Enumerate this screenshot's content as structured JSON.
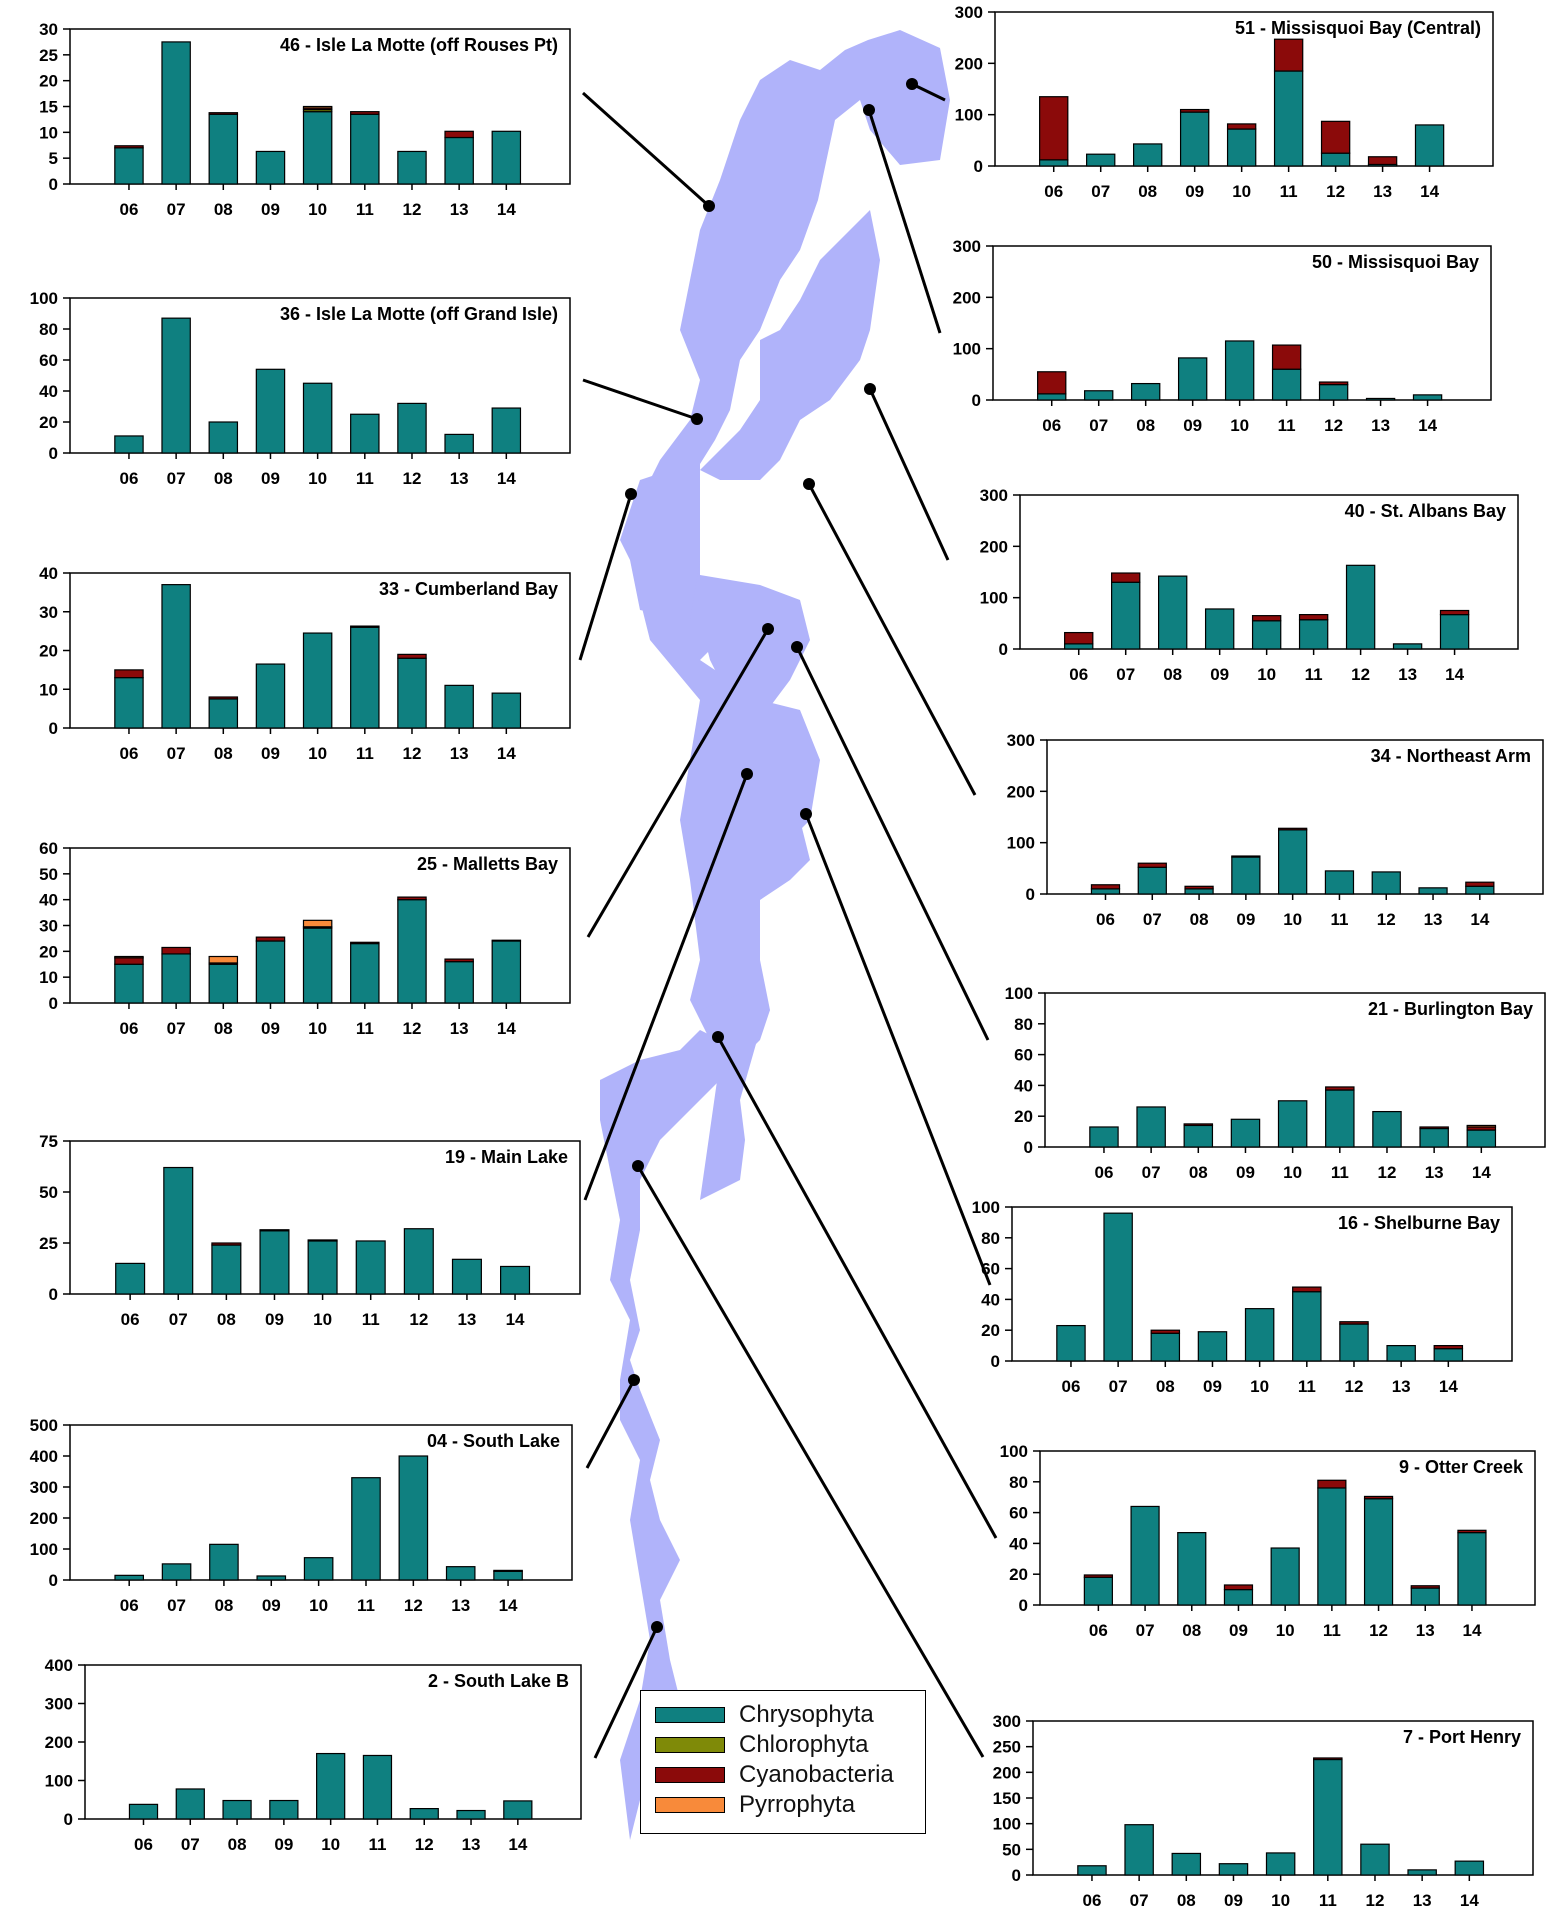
{
  "colors": {
    "lake": "#b0b3fa",
    "chrysophyta": "#0f8080",
    "chlorophyta": "#7f8a08",
    "cyanobacteria": "#8b0a0a",
    "pyrrophyta": "#f88a3a"
  },
  "legend": {
    "items": [
      {
        "label": "Chrysophyta",
        "color": "#0f8080"
      },
      {
        "label": "Chlorophyta",
        "color": "#7f8a08"
      },
      {
        "label": "Cyanobacteria",
        "color": "#8b0a0a"
      },
      {
        "label": "Pyrrophyta",
        "color": "#f88a3a"
      }
    ]
  },
  "chart_data": [
    {
      "type": "bar",
      "title": "46 - Isle La Motte (off Rouses Pt)",
      "categories": [
        "06",
        "07",
        "08",
        "09",
        "10",
        "11",
        "12",
        "13",
        "14"
      ],
      "ylim": [
        0,
        30
      ],
      "yticks": [
        0,
        5,
        10,
        15,
        20,
        25,
        30
      ],
      "series": [
        {
          "name": "Chrysophyta",
          "values": [
            7,
            27.5,
            13.5,
            6.3,
            14,
            13.5,
            6.3,
            9,
            10.2
          ]
        },
        {
          "name": "Chlorophyta",
          "values": [
            0,
            0,
            0,
            0,
            0.4,
            0,
            0,
            0,
            0
          ]
        },
        {
          "name": "Cyanobacteria",
          "values": [
            0.4,
            0,
            0.3,
            0,
            0.3,
            0.5,
            0,
            1.2,
            0
          ]
        },
        {
          "name": "Pyrrophyta",
          "values": [
            0,
            0,
            0,
            0,
            0.3,
            0,
            0,
            0,
            0
          ]
        }
      ]
    },
    {
      "type": "bar",
      "title": "36 - Isle La Motte (off Grand Isle)",
      "categories": [
        "06",
        "07",
        "08",
        "09",
        "10",
        "11",
        "12",
        "13",
        "14"
      ],
      "ylim": [
        0,
        100
      ],
      "yticks": [
        0,
        20,
        40,
        60,
        80,
        100
      ],
      "series": [
        {
          "name": "Chrysophyta",
          "values": [
            11,
            87,
            20,
            54,
            45,
            25,
            32,
            12,
            29
          ]
        },
        {
          "name": "Chlorophyta",
          "values": [
            0,
            0,
            0,
            0,
            0,
            0,
            0,
            0,
            0
          ]
        },
        {
          "name": "Cyanobacteria",
          "values": [
            0,
            0,
            0,
            0,
            0,
            0,
            0,
            0,
            0
          ]
        },
        {
          "name": "Pyrrophyta",
          "values": [
            0,
            0,
            0,
            0,
            0,
            0,
            0,
            0,
            0
          ]
        }
      ]
    },
    {
      "type": "bar",
      "title": "33 - Cumberland Bay",
      "categories": [
        "06",
        "07",
        "08",
        "09",
        "10",
        "11",
        "12",
        "13",
        "14"
      ],
      "ylim": [
        0,
        40
      ],
      "yticks": [
        0,
        10,
        20,
        30,
        40
      ],
      "series": [
        {
          "name": "Chrysophyta",
          "values": [
            13,
            37,
            7.5,
            16.5,
            24.5,
            26,
            18,
            11,
            9
          ]
        },
        {
          "name": "Chlorophyta",
          "values": [
            0,
            0,
            0,
            0,
            0,
            0,
            0,
            0,
            0
          ]
        },
        {
          "name": "Cyanobacteria",
          "values": [
            2,
            0,
            0.5,
            0,
            0,
            0.3,
            1,
            0,
            0
          ]
        },
        {
          "name": "Pyrrophyta",
          "values": [
            0,
            0,
            0,
            0,
            0,
            0,
            0,
            0,
            0
          ]
        }
      ]
    },
    {
      "type": "bar",
      "title": "25 - Malletts Bay",
      "categories": [
        "06",
        "07",
        "08",
        "09",
        "10",
        "11",
        "12",
        "13",
        "14"
      ],
      "ylim": [
        0,
        60
      ],
      "yticks": [
        0,
        10,
        20,
        30,
        40,
        50,
        60
      ],
      "series": [
        {
          "name": "Chrysophyta",
          "values": [
            15,
            19,
            15,
            24,
            29,
            23,
            40,
            16,
            24
          ]
        },
        {
          "name": "Chlorophyta",
          "values": [
            0,
            0,
            0,
            0,
            0,
            0,
            0,
            0,
            0
          ]
        },
        {
          "name": "Cyanobacteria",
          "values": [
            2.5,
            2.5,
            0.5,
            1.5,
            0.5,
            0.5,
            1,
            1,
            0.3
          ]
        },
        {
          "name": "Pyrrophyta",
          "values": [
            0.5,
            0,
            2.5,
            0,
            2.5,
            0,
            0,
            0,
            0
          ]
        }
      ]
    },
    {
      "type": "bar",
      "title": "19 - Main Lake",
      "categories": [
        "06",
        "07",
        "08",
        "09",
        "10",
        "11",
        "12",
        "13",
        "14"
      ],
      "ylim": [
        0,
        75
      ],
      "yticks": [
        0,
        25,
        50,
        75
      ],
      "series": [
        {
          "name": "Chrysophyta",
          "values": [
            15,
            62,
            24,
            31,
            26,
            26,
            32,
            17,
            13.5
          ]
        },
        {
          "name": "Chlorophyta",
          "values": [
            0,
            0,
            0,
            0,
            0,
            0,
            0,
            0,
            0
          ]
        },
        {
          "name": "Cyanobacteria",
          "values": [
            0,
            0,
            1,
            0.5,
            0.5,
            0,
            0,
            0,
            0
          ]
        },
        {
          "name": "Pyrrophyta",
          "values": [
            0,
            0,
            0,
            0,
            0,
            0,
            0,
            0,
            0
          ]
        }
      ]
    },
    {
      "type": "bar",
      "title": "04 - South Lake",
      "categories": [
        "06",
        "07",
        "08",
        "09",
        "10",
        "11",
        "12",
        "13",
        "14"
      ],
      "ylim": [
        0,
        500
      ],
      "yticks": [
        0,
        100,
        200,
        300,
        400,
        500
      ],
      "series": [
        {
          "name": "Chrysophyta",
          "values": [
            15,
            52,
            115,
            13,
            72,
            330,
            400,
            43,
            28
          ]
        },
        {
          "name": "Chlorophyta",
          "values": [
            0,
            0,
            0,
            0,
            0,
            0,
            0,
            0,
            0
          ]
        },
        {
          "name": "Cyanobacteria",
          "values": [
            0,
            0,
            0,
            0,
            0,
            0,
            0,
            0,
            3
          ]
        },
        {
          "name": "Pyrrophyta",
          "values": [
            0,
            0,
            0,
            0,
            0,
            0,
            0,
            0,
            0
          ]
        }
      ]
    },
    {
      "type": "bar",
      "title": "2 - South Lake B",
      "categories": [
        "06",
        "07",
        "08",
        "09",
        "10",
        "11",
        "12",
        "13",
        "14"
      ],
      "ylim": [
        0,
        400
      ],
      "yticks": [
        0,
        100,
        200,
        300,
        400
      ],
      "series": [
        {
          "name": "Chrysophyta",
          "values": [
            38,
            78,
            48,
            48,
            170,
            165,
            27,
            22,
            47
          ]
        },
        {
          "name": "Chlorophyta",
          "values": [
            0,
            0,
            0,
            0,
            0,
            0,
            0,
            0,
            0
          ]
        },
        {
          "name": "Cyanobacteria",
          "values": [
            0,
            0,
            0,
            0,
            0,
            0,
            0,
            0,
            0
          ]
        },
        {
          "name": "Pyrrophyta",
          "values": [
            0,
            0,
            0,
            0,
            0,
            0,
            0,
            0,
            0
          ]
        }
      ]
    },
    {
      "type": "bar",
      "title": "51 - Missisquoi Bay (Central)",
      "categories": [
        "06",
        "07",
        "08",
        "09",
        "10",
        "11",
        "12",
        "13",
        "14"
      ],
      "ylim": [
        0,
        300
      ],
      "yticks": [
        0,
        100,
        200,
        300
      ],
      "series": [
        {
          "name": "Chrysophyta",
          "values": [
            12,
            23,
            43,
            105,
            72,
            185,
            25,
            3,
            80
          ]
        },
        {
          "name": "Chlorophyta",
          "values": [
            0,
            0,
            0,
            0,
            0,
            0,
            0,
            0,
            0
          ]
        },
        {
          "name": "Cyanobacteria",
          "values": [
            123,
            0,
            0,
            5,
            10,
            62,
            62,
            15,
            0
          ]
        },
        {
          "name": "Pyrrophyta",
          "values": [
            0,
            0,
            0,
            0,
            0,
            0,
            0,
            0,
            0
          ]
        }
      ]
    },
    {
      "type": "bar",
      "title": "50 - Missisquoi Bay",
      "categories": [
        "06",
        "07",
        "08",
        "09",
        "10",
        "11",
        "12",
        "13",
        "14"
      ],
      "ylim": [
        0,
        300
      ],
      "yticks": [
        0,
        100,
        200,
        300
      ],
      "series": [
        {
          "name": "Chrysophyta",
          "values": [
            12,
            18,
            32,
            82,
            115,
            60,
            30,
            3,
            10
          ]
        },
        {
          "name": "Chlorophyta",
          "values": [
            0,
            0,
            0,
            0,
            0,
            0,
            0,
            0,
            0
          ]
        },
        {
          "name": "Cyanobacteria",
          "values": [
            43,
            0,
            0,
            0,
            0,
            47,
            5,
            0,
            0
          ]
        },
        {
          "name": "Pyrrophyta",
          "values": [
            0,
            0,
            0,
            0,
            0,
            0,
            0,
            0,
            0
          ]
        }
      ]
    },
    {
      "type": "bar",
      "title": "40 - St. Albans Bay",
      "categories": [
        "06",
        "07",
        "08",
        "09",
        "10",
        "11",
        "12",
        "13",
        "14"
      ],
      "ylim": [
        0,
        300
      ],
      "yticks": [
        0,
        100,
        200,
        300
      ],
      "series": [
        {
          "name": "Chrysophyta",
          "values": [
            10,
            130,
            142,
            78,
            55,
            57,
            163,
            10,
            67
          ]
        },
        {
          "name": "Chlorophyta",
          "values": [
            0,
            0,
            0,
            0,
            0,
            0,
            0,
            0,
            0
          ]
        },
        {
          "name": "Cyanobacteria",
          "values": [
            22,
            18,
            0,
            0,
            10,
            10,
            0,
            0,
            8
          ]
        },
        {
          "name": "Pyrrophyta",
          "values": [
            0,
            0,
            0,
            0,
            0,
            0,
            0,
            0,
            0
          ]
        }
      ]
    },
    {
      "type": "bar",
      "title": "34 - Northeast Arm",
      "categories": [
        "06",
        "07",
        "08",
        "09",
        "10",
        "11",
        "12",
        "13",
        "14"
      ],
      "ylim": [
        0,
        300
      ],
      "yticks": [
        0,
        100,
        200,
        300
      ],
      "series": [
        {
          "name": "Chrysophyta",
          "values": [
            10,
            52,
            10,
            72,
            125,
            45,
            43,
            12,
            15
          ]
        },
        {
          "name": "Chlorophyta",
          "values": [
            0,
            0,
            0,
            0,
            0,
            0,
            0,
            0,
            0
          ]
        },
        {
          "name": "Cyanobacteria",
          "values": [
            8,
            8,
            5,
            2,
            3,
            0,
            0,
            0,
            8
          ]
        },
        {
          "name": "Pyrrophyta",
          "values": [
            0,
            0,
            0,
            0,
            0,
            0,
            0,
            0,
            0
          ]
        }
      ]
    },
    {
      "type": "bar",
      "title": "21 - Burlington Bay",
      "categories": [
        "06",
        "07",
        "08",
        "09",
        "10",
        "11",
        "12",
        "13",
        "14"
      ],
      "ylim": [
        0,
        100
      ],
      "yticks": [
        0,
        20,
        40,
        60,
        80,
        100
      ],
      "series": [
        {
          "name": "Chrysophyta",
          "values": [
            13,
            26,
            14,
            18,
            30,
            37,
            23,
            12,
            11
          ]
        },
        {
          "name": "Chlorophyta",
          "values": [
            0,
            0,
            0,
            0,
            0,
            0,
            0,
            0,
            0
          ]
        },
        {
          "name": "Cyanobacteria",
          "values": [
            0,
            0,
            1,
            0,
            0,
            2,
            0,
            1,
            2
          ]
        },
        {
          "name": "Pyrrophyta",
          "values": [
            0,
            0,
            0,
            0,
            0,
            0,
            0,
            0,
            1
          ]
        }
      ]
    },
    {
      "type": "bar",
      "title": "16 - Shelburne Bay",
      "categories": [
        "06",
        "07",
        "08",
        "09",
        "10",
        "11",
        "12",
        "13",
        "14"
      ],
      "ylim": [
        0,
        100
      ],
      "yticks": [
        0,
        20,
        40,
        60,
        80,
        100
      ],
      "series": [
        {
          "name": "Chrysophyta",
          "values": [
            23,
            96,
            18,
            19,
            34,
            45,
            24,
            10,
            8
          ]
        },
        {
          "name": "Chlorophyta",
          "values": [
            0,
            0,
            0,
            0,
            0,
            0,
            0,
            0,
            0
          ]
        },
        {
          "name": "Cyanobacteria",
          "values": [
            0,
            0,
            2,
            0,
            0,
            3,
            1.5,
            0,
            2
          ]
        },
        {
          "name": "Pyrrophyta",
          "values": [
            0,
            0,
            0,
            0,
            0,
            0,
            0,
            0,
            0
          ]
        }
      ]
    },
    {
      "type": "bar",
      "title": "9 - Otter Creek",
      "categories": [
        "06",
        "07",
        "08",
        "09",
        "10",
        "11",
        "12",
        "13",
        "14"
      ],
      "ylim": [
        0,
        100
      ],
      "yticks": [
        0,
        20,
        40,
        60,
        80,
        100
      ],
      "series": [
        {
          "name": "Chrysophyta",
          "values": [
            18,
            64,
            47,
            10,
            37,
            76,
            69,
            11,
            47
          ]
        },
        {
          "name": "Chlorophyta",
          "values": [
            0,
            0,
            0,
            0,
            0,
            0,
            0,
            0,
            0
          ]
        },
        {
          "name": "Cyanobacteria",
          "values": [
            1.5,
            0,
            0,
            3,
            0,
            5,
            1.5,
            1.5,
            1.5
          ]
        },
        {
          "name": "Pyrrophyta",
          "values": [
            0,
            0,
            0,
            0,
            0,
            0,
            0,
            0,
            0
          ]
        }
      ]
    },
    {
      "type": "bar",
      "title": "7 - Port Henry",
      "categories": [
        "06",
        "07",
        "08",
        "09",
        "10",
        "11",
        "12",
        "13",
        "14"
      ],
      "ylim": [
        0,
        300
      ],
      "yticks": [
        0,
        50,
        100,
        150,
        200,
        250,
        300
      ],
      "series": [
        {
          "name": "Chrysophyta",
          "values": [
            18,
            98,
            42,
            22,
            43,
            225,
            60,
            10,
            27
          ]
        },
        {
          "name": "Chlorophyta",
          "values": [
            0,
            0,
            0,
            0,
            0,
            0,
            0,
            0,
            0
          ]
        },
        {
          "name": "Cyanobacteria",
          "values": [
            0,
            0,
            0,
            0,
            0,
            3,
            0,
            0,
            0
          ]
        },
        {
          "name": "Pyrrophyta",
          "values": [
            0,
            0,
            0,
            0,
            0,
            0,
            0,
            0,
            0
          ]
        }
      ]
    }
  ]
}
